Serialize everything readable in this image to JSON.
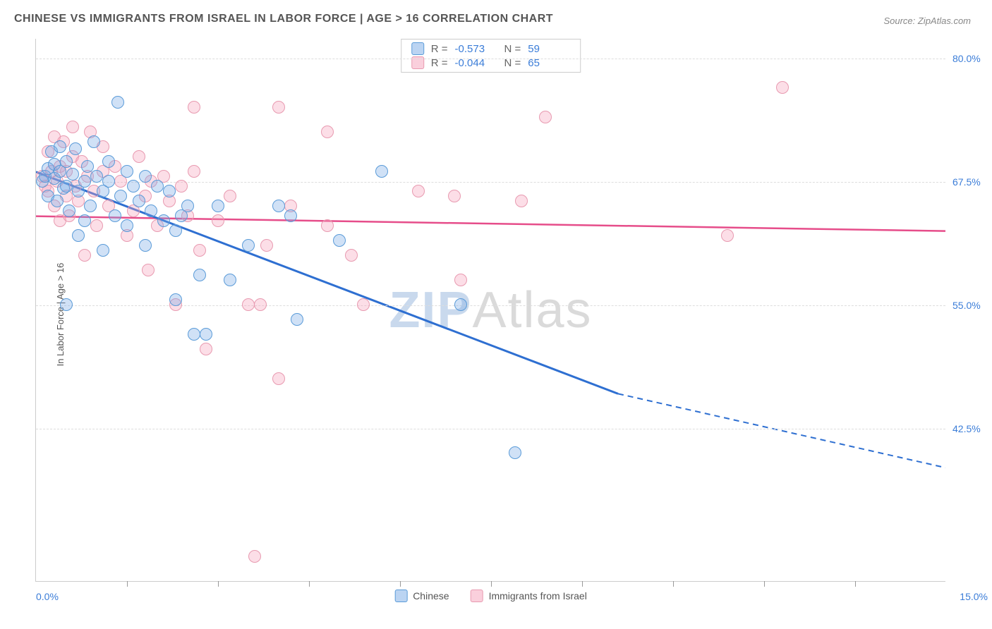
{
  "title": "CHINESE VS IMMIGRANTS FROM ISRAEL IN LABOR FORCE | AGE > 16 CORRELATION CHART",
  "source": "Source: ZipAtlas.com",
  "ylabel": "In Labor Force | Age > 16",
  "watermark": {
    "part1": "ZIP",
    "part2": "Atlas"
  },
  "chart": {
    "type": "scatter",
    "xlim": [
      0,
      15
    ],
    "ylim": [
      27,
      82
    ],
    "background_color": "#ffffff",
    "grid_color": "#dddddd",
    "axis_color": "#cccccc",
    "tick_label_color": "#3b7dd8",
    "yticks": [
      42.5,
      55.0,
      67.5,
      80.0
    ],
    "ytick_labels": [
      "42.5%",
      "55.0%",
      "67.5%",
      "80.0%"
    ],
    "xtick_positions": [
      1.5,
      3.0,
      4.5,
      6.0,
      7.5,
      9.0,
      10.5,
      12.0,
      13.5
    ],
    "xaxis_start_label": "0.0%",
    "xaxis_end_label": "15.0%",
    "marker_radius": 9,
    "series": [
      {
        "name": "Chinese",
        "color_fill": "rgba(120,170,230,0.35)",
        "color_stroke": "#5a9bd8",
        "R": "-0.573",
        "N": "59",
        "trend": {
          "solid_from": [
            0,
            68.5
          ],
          "solid_to": [
            9.6,
            46.0
          ],
          "dash_to": [
            15,
            38.5
          ],
          "color": "#2e6fd1",
          "width": 3
        },
        "points": [
          [
            0.1,
            67.5
          ],
          [
            0.15,
            68.0
          ],
          [
            0.2,
            68.8
          ],
          [
            0.2,
            66.0
          ],
          [
            0.25,
            70.5
          ],
          [
            0.3,
            67.8
          ],
          [
            0.3,
            69.2
          ],
          [
            0.35,
            65.5
          ],
          [
            0.4,
            68.5
          ],
          [
            0.4,
            71.0
          ],
          [
            0.45,
            66.8
          ],
          [
            0.5,
            69.5
          ],
          [
            0.5,
            67.0
          ],
          [
            0.55,
            64.5
          ],
          [
            0.6,
            68.2
          ],
          [
            0.65,
            70.8
          ],
          [
            0.7,
            66.5
          ],
          [
            0.7,
            62.0
          ],
          [
            0.8,
            67.5
          ],
          [
            0.8,
            63.5
          ],
          [
            0.85,
            69.0
          ],
          [
            0.9,
            65.0
          ],
          [
            0.95,
            71.5
          ],
          [
            1.0,
            68.0
          ],
          [
            1.1,
            66.5
          ],
          [
            1.1,
            60.5
          ],
          [
            1.2,
            67.5
          ],
          [
            1.2,
            69.5
          ],
          [
            1.3,
            64.0
          ],
          [
            1.35,
            75.5
          ],
          [
            1.4,
            66.0
          ],
          [
            1.5,
            63.0
          ],
          [
            1.5,
            68.5
          ],
          [
            1.6,
            67.0
          ],
          [
            1.7,
            65.5
          ],
          [
            1.8,
            61.0
          ],
          [
            1.8,
            68.0
          ],
          [
            1.9,
            64.5
          ],
          [
            2.0,
            67.0
          ],
          [
            2.1,
            63.5
          ],
          [
            2.2,
            66.5
          ],
          [
            2.3,
            62.5
          ],
          [
            2.3,
            55.5
          ],
          [
            2.4,
            64.0
          ],
          [
            2.5,
            65.0
          ],
          [
            2.6,
            52.0
          ],
          [
            2.7,
            58.0
          ],
          [
            2.8,
            52.0
          ],
          [
            3.0,
            65.0
          ],
          [
            3.2,
            57.5
          ],
          [
            3.5,
            61.0
          ],
          [
            4.0,
            65.0
          ],
          [
            4.2,
            64.0
          ],
          [
            4.3,
            53.5
          ],
          [
            5.0,
            61.5
          ],
          [
            5.7,
            68.5
          ],
          [
            7.0,
            55.0
          ],
          [
            7.9,
            40.0
          ],
          [
            0.5,
            55.0
          ]
        ]
      },
      {
        "name": "Immigrants from Israel",
        "color_fill": "rgba(245,160,185,0.35)",
        "color_stroke": "#e89ab0",
        "R": "-0.044",
        "N": "65",
        "trend": {
          "solid_from": [
            0,
            64.0
          ],
          "solid_to": [
            15,
            62.5
          ],
          "color": "#e64d8a",
          "width": 2.5
        },
        "points": [
          [
            0.1,
            68.0
          ],
          [
            0.15,
            67.0
          ],
          [
            0.2,
            70.5
          ],
          [
            0.2,
            66.5
          ],
          [
            0.25,
            68.5
          ],
          [
            0.3,
            65.0
          ],
          [
            0.3,
            72.0
          ],
          [
            0.35,
            67.5
          ],
          [
            0.4,
            63.5
          ],
          [
            0.4,
            69.0
          ],
          [
            0.45,
            71.5
          ],
          [
            0.5,
            66.0
          ],
          [
            0.5,
            68.5
          ],
          [
            0.55,
            64.0
          ],
          [
            0.6,
            70.0
          ],
          [
            0.6,
            73.0
          ],
          [
            0.65,
            67.0
          ],
          [
            0.7,
            65.5
          ],
          [
            0.75,
            69.5
          ],
          [
            0.8,
            60.0
          ],
          [
            0.85,
            68.0
          ],
          [
            0.9,
            72.5
          ],
          [
            0.95,
            66.5
          ],
          [
            1.0,
            63.0
          ],
          [
            1.1,
            68.5
          ],
          [
            1.1,
            71.0
          ],
          [
            1.2,
            65.0
          ],
          [
            1.3,
            69.0
          ],
          [
            1.4,
            67.5
          ],
          [
            1.5,
            62.0
          ],
          [
            1.6,
            64.5
          ],
          [
            1.7,
            70.0
          ],
          [
            1.8,
            66.0
          ],
          [
            1.85,
            58.5
          ],
          [
            1.9,
            67.5
          ],
          [
            2.0,
            63.0
          ],
          [
            2.1,
            68.0
          ],
          [
            2.2,
            65.5
          ],
          [
            2.3,
            55.0
          ],
          [
            2.4,
            67.0
          ],
          [
            2.5,
            64.0
          ],
          [
            2.6,
            68.5
          ],
          [
            2.6,
            75.0
          ],
          [
            2.7,
            60.5
          ],
          [
            2.8,
            50.5
          ],
          [
            3.0,
            63.5
          ],
          [
            3.2,
            66.0
          ],
          [
            3.5,
            55.0
          ],
          [
            3.6,
            29.5
          ],
          [
            3.7,
            55.0
          ],
          [
            3.8,
            61.0
          ],
          [
            4.0,
            47.5
          ],
          [
            4.0,
            75.0
          ],
          [
            4.2,
            65.0
          ],
          [
            4.8,
            63.0
          ],
          [
            4.8,
            72.5
          ],
          [
            5.2,
            60.0
          ],
          [
            5.4,
            55.0
          ],
          [
            6.3,
            66.5
          ],
          [
            6.9,
            66.0
          ],
          [
            7.0,
            57.5
          ],
          [
            8.0,
            65.5
          ],
          [
            8.4,
            74.0
          ],
          [
            11.4,
            62.0
          ],
          [
            12.3,
            77.0
          ]
        ]
      }
    ]
  },
  "stats_labels": {
    "R": "R  =",
    "N": "N  ="
  },
  "legend": {
    "series1": "Chinese",
    "series2": "Immigrants from Israel"
  }
}
